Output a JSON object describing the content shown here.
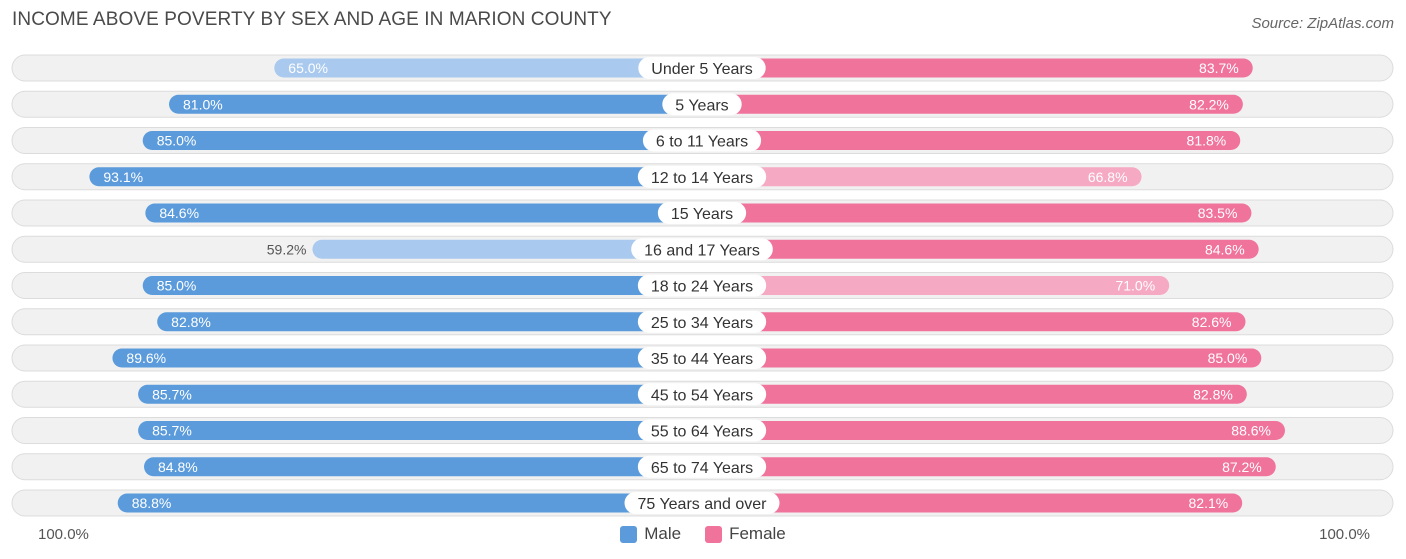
{
  "title": "INCOME ABOVE POVERTY BY SEX AND AGE IN MARION COUNTY",
  "source": "Source: ZipAtlas.com",
  "colors": {
    "male_strong": "#5b9bdb",
    "male_light": "#a9c9ee",
    "female_strong": "#f0739c",
    "female_light": "#f6a9c2",
    "track": "#f1f1f1",
    "track_border": "#dcdcdc"
  },
  "chart_data": {
    "type": "bar",
    "orientation": "diverging-horizontal",
    "title": "INCOME ABOVE POVERTY BY SEX AND AGE IN MARION COUNTY",
    "categories": [
      "Under 5 Years",
      "5 Years",
      "6 to 11 Years",
      "12 to 14 Years",
      "15 Years",
      "16 and 17 Years",
      "18 to 24 Years",
      "25 to 34 Years",
      "35 to 44 Years",
      "45 to 54 Years",
      "55 to 64 Years",
      "65 to 74 Years",
      "75 Years and over"
    ],
    "series": [
      {
        "name": "Male",
        "values": [
          65.0,
          81.0,
          85.0,
          93.1,
          84.6,
          59.2,
          85.0,
          82.8,
          89.6,
          85.7,
          85.7,
          84.8,
          88.8
        ],
        "labels": [
          "65.0%",
          "81.0%",
          "85.0%",
          "93.1%",
          "84.6%",
          "59.2%",
          "85.0%",
          "82.8%",
          "89.6%",
          "85.7%",
          "85.7%",
          "84.8%",
          "88.8%"
        ]
      },
      {
        "name": "Female",
        "values": [
          83.7,
          82.2,
          81.8,
          66.8,
          83.5,
          84.6,
          71.0,
          82.6,
          85.0,
          82.8,
          88.6,
          87.2,
          82.1
        ],
        "labels": [
          "83.7%",
          "82.2%",
          "81.8%",
          "66.8%",
          "83.5%",
          "84.6%",
          "71.0%",
          "82.6%",
          "85.0%",
          "82.8%",
          "88.6%",
          "87.2%",
          "82.1%"
        ]
      }
    ],
    "xlim": [
      0,
      100
    ],
    "axis_left_label": "100.0%",
    "axis_right_label": "100.0%",
    "legend": [
      "Male",
      "Female"
    ],
    "legend_position": "bottom-center"
  }
}
